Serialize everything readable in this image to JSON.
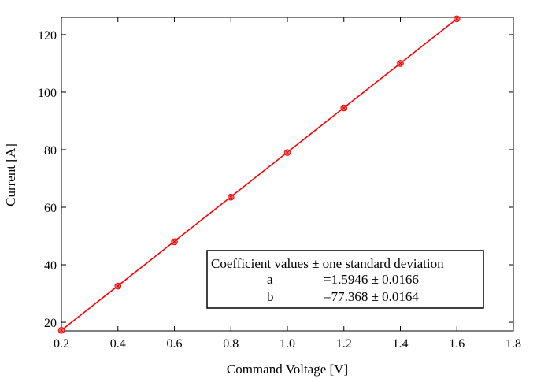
{
  "chart_data": {
    "type": "line",
    "xlabel": "Command Voltage [V]",
    "ylabel": "Current [A]",
    "xlim": [
      0.2,
      1.8
    ],
    "ylim": [
      17,
      126
    ],
    "xticks": [
      "0.2",
      "0.4",
      "0.6",
      "0.8",
      "1.0",
      "1.2",
      "1.4",
      "1.6",
      "1.8"
    ],
    "yticks": [
      "20",
      "40",
      "60",
      "80",
      "100",
      "120"
    ],
    "grid": false,
    "series": [
      {
        "kind": "points",
        "color": "#ff0000",
        "x": [
          0.2,
          0.4,
          0.6,
          0.8,
          1.0,
          1.2,
          1.4,
          1.6
        ],
        "y": [
          17.2,
          32.6,
          48.0,
          63.5,
          79.0,
          94.5,
          110.0,
          125.5
        ]
      },
      {
        "kind": "fit-line",
        "color": "#ff0000",
        "x": [
          0.2,
          1.6
        ],
        "y": [
          17.2,
          125.5
        ]
      }
    ],
    "annotation": {
      "header": "Coefficient values ± one standard deviation",
      "rows": [
        {
          "name": "a",
          "value": "=1.5946 ± 0.0166"
        },
        {
          "name": "b",
          "value": "=77.368 ± 0.0164"
        }
      ]
    }
  }
}
